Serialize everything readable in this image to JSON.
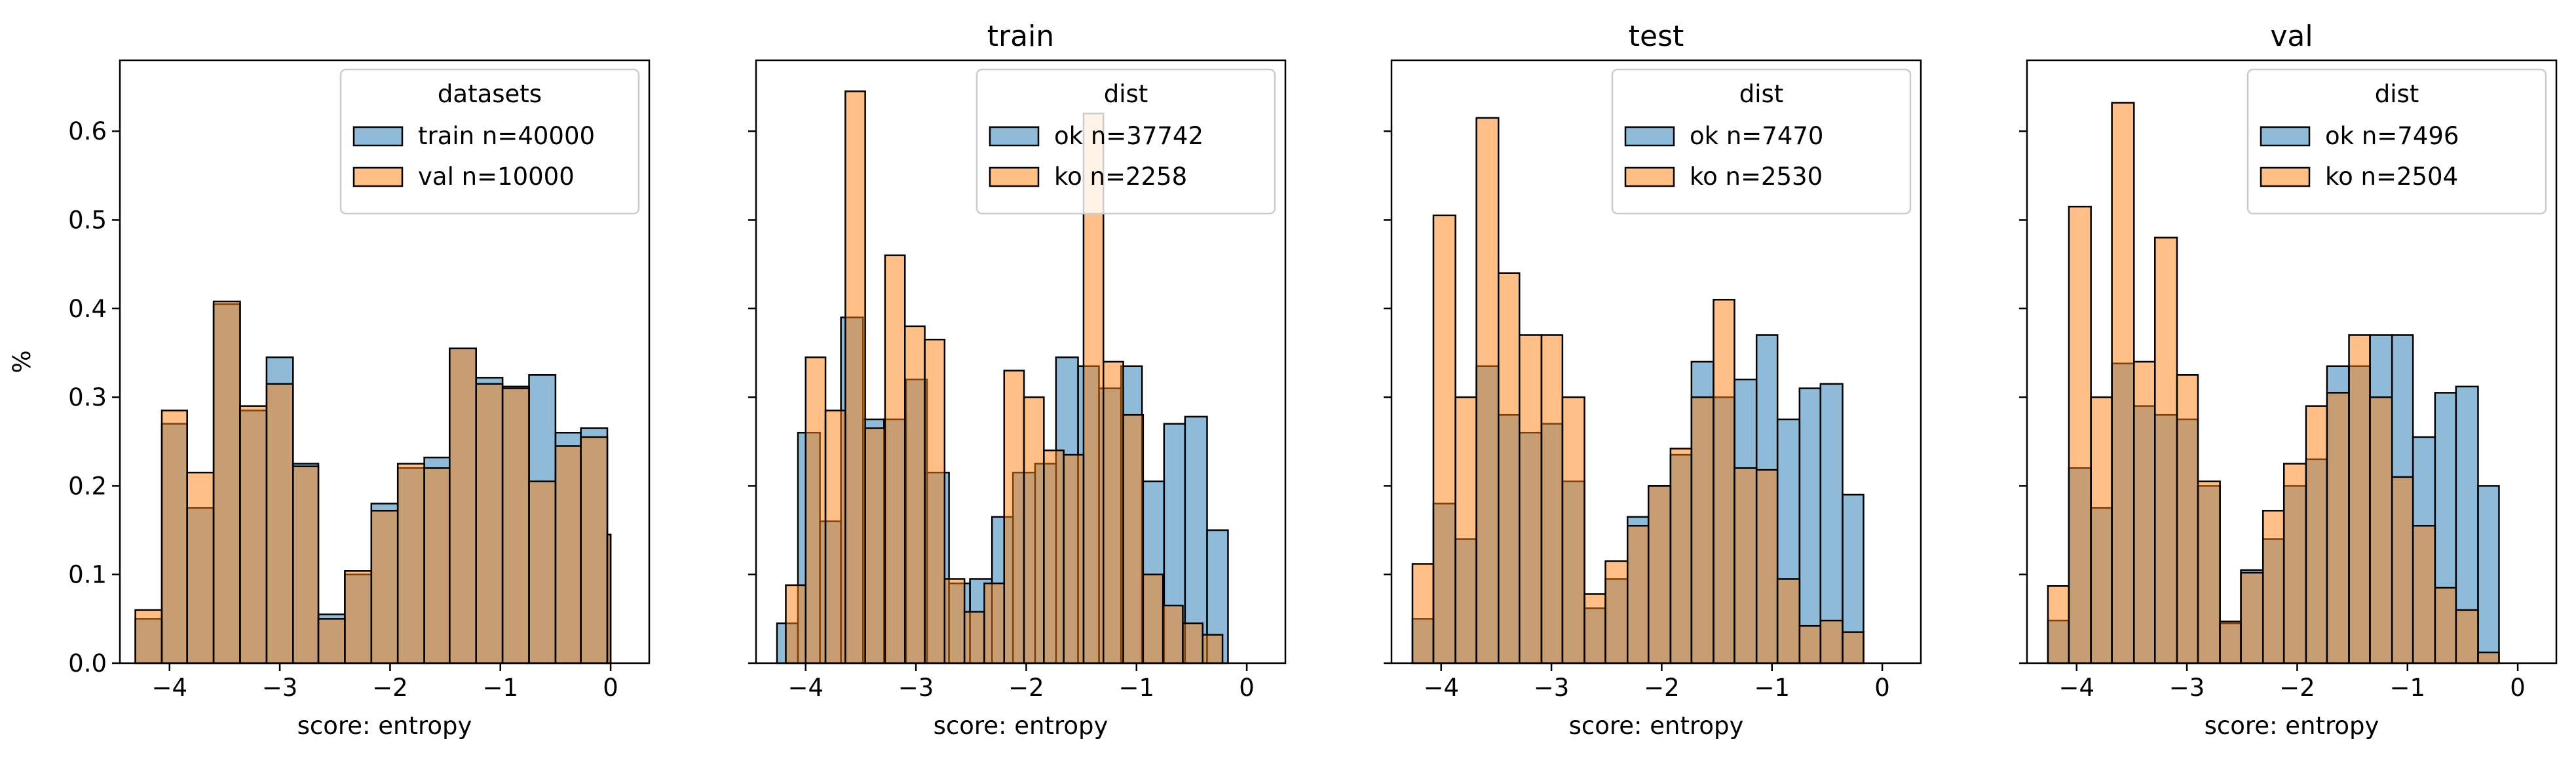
{
  "colors": {
    "series_a": "#1f77b4",
    "series_b": "#ff7f0e",
    "bar_alpha": 0.5,
    "edge": "#000000"
  },
  "chart_data": [
    {
      "type": "bar",
      "title": "",
      "xlabel": "score: entropy",
      "ylabel": "%",
      "xlim": [
        -4.45,
        0.35
      ],
      "ylim": [
        0,
        0.68
      ],
      "xticks": [
        -4,
        -3,
        -2,
        -1,
        0
      ],
      "yticks": [
        0.0,
        0.1,
        0.2,
        0.3,
        0.4,
        0.5,
        0.6
      ],
      "grid": false,
      "legend": {
        "title": "datasets",
        "placement": "top-right"
      },
      "series": [
        {
          "name": "train n=40000",
          "color": "series_a",
          "bins": [
            [
              -4.31,
              -4.07,
              0.05
            ],
            [
              -4.07,
              -3.84,
              0.27
            ],
            [
              -3.84,
              -3.6,
              0.175
            ],
            [
              -3.6,
              -3.36,
              0.405
            ],
            [
              -3.36,
              -3.12,
              0.285
            ],
            [
              -3.12,
              -2.88,
              0.345
            ],
            [
              -2.88,
              -2.65,
              0.225
            ],
            [
              -2.65,
              -2.41,
              0.055
            ],
            [
              -2.41,
              -2.17,
              0.1
            ],
            [
              -2.17,
              -1.93,
              0.18
            ],
            [
              -1.93,
              -1.69,
              0.22
            ],
            [
              -1.69,
              -1.46,
              0.232
            ],
            [
              -1.46,
              -1.22,
              0.355
            ],
            [
              -1.22,
              -0.98,
              0.322
            ],
            [
              -0.98,
              -0.74,
              0.312
            ],
            [
              -0.74,
              -0.5,
              0.325
            ],
            [
              -0.5,
              -0.27,
              0.26
            ],
            [
              -0.27,
              -0.03,
              0.265
            ],
            [
              -0.03,
              0.0,
              0.145
            ]
          ]
        },
        {
          "name": "val n=10000",
          "color": "series_b",
          "bins": [
            [
              -4.31,
              -4.07,
              0.06
            ],
            [
              -4.07,
              -3.84,
              0.285
            ],
            [
              -3.84,
              -3.6,
              0.215
            ],
            [
              -3.6,
              -3.36,
              0.408
            ],
            [
              -3.36,
              -3.12,
              0.29
            ],
            [
              -3.12,
              -2.88,
              0.315
            ],
            [
              -2.88,
              -2.65,
              0.222
            ],
            [
              -2.65,
              -2.41,
              0.05
            ],
            [
              -2.41,
              -2.17,
              0.104
            ],
            [
              -2.17,
              -1.93,
              0.172
            ],
            [
              -1.93,
              -1.69,
              0.225
            ],
            [
              -1.69,
              -1.46,
              0.22
            ],
            [
              -1.46,
              -1.22,
              0.355
            ],
            [
              -1.22,
              -0.98,
              0.315
            ],
            [
              -0.98,
              -0.74,
              0.31
            ],
            [
              -0.74,
              -0.5,
              0.205
            ],
            [
              -0.5,
              -0.27,
              0.245
            ],
            [
              -0.27,
              -0.03,
              0.255
            ],
            [
              -0.03,
              0.0,
              0.145
            ]
          ]
        }
      ]
    },
    {
      "type": "bar",
      "title": "train",
      "xlabel": "score: entropy",
      "ylabel": "",
      "xlim": [
        -4.45,
        0.35
      ],
      "ylim": [
        0,
        0.68
      ],
      "xticks": [
        -4,
        -3,
        -2,
        -1,
        0
      ],
      "yticks": [
        0.0,
        0.1,
        0.2,
        0.3,
        0.4,
        0.5,
        0.6
      ],
      "grid": false,
      "legend": {
        "title": "dist",
        "placement": "top-right"
      },
      "series": [
        {
          "name": "ok n=37742",
          "color": "series_a",
          "bins": [
            [
              -4.26,
              -4.07,
              0.045
            ],
            [
              -4.07,
              -3.87,
              0.26
            ],
            [
              -3.87,
              -3.68,
              0.16
            ],
            [
              -3.68,
              -3.48,
              0.39
            ],
            [
              -3.48,
              -3.29,
              0.275
            ],
            [
              -3.29,
              -3.09,
              0.275
            ],
            [
              -3.09,
              -2.9,
              0.32
            ],
            [
              -2.9,
              -2.7,
              0.215
            ],
            [
              -2.7,
              -2.51,
              0.09
            ],
            [
              -2.51,
              -2.31,
              0.095
            ],
            [
              -2.31,
              -2.12,
              0.165
            ],
            [
              -2.12,
              -1.92,
              0.215
            ],
            [
              -1.92,
              -1.73,
              0.225
            ],
            [
              -1.73,
              -1.53,
              0.345
            ],
            [
              -1.53,
              -1.34,
              0.335
            ],
            [
              -1.34,
              -1.14,
              0.31
            ],
            [
              -1.14,
              -0.95,
              0.335
            ],
            [
              -0.95,
              -0.75,
              0.205
            ],
            [
              -0.75,
              -0.56,
              0.27
            ],
            [
              -0.56,
              -0.36,
              0.278
            ],
            [
              -0.36,
              -0.17,
              0.15
            ]
          ]
        },
        {
          "name": "ko n=2258",
          "color": "series_b",
          "bins": [
            [
              -4.18,
              -4.0,
              0.088
            ],
            [
              -4.0,
              -3.82,
              0.345
            ],
            [
              -3.82,
              -3.64,
              0.285
            ],
            [
              -3.64,
              -3.46,
              0.645
            ],
            [
              -3.46,
              -3.28,
              0.265
            ],
            [
              -3.28,
              -3.1,
              0.46
            ],
            [
              -3.1,
              -2.92,
              0.38
            ],
            [
              -2.92,
              -2.74,
              0.365
            ],
            [
              -2.74,
              -2.56,
              0.095
            ],
            [
              -2.56,
              -2.38,
              0.058
            ],
            [
              -2.38,
              -2.2,
              0.09
            ],
            [
              -2.2,
              -2.02,
              0.33
            ],
            [
              -2.02,
              -1.84,
              0.3
            ],
            [
              -1.84,
              -1.66,
              0.24
            ],
            [
              -1.66,
              -1.48,
              0.235
            ],
            [
              -1.48,
              -1.3,
              0.62
            ],
            [
              -1.3,
              -1.12,
              0.34
            ],
            [
              -1.12,
              -0.94,
              0.28
            ],
            [
              -0.94,
              -0.76,
              0.1
            ],
            [
              -0.76,
              -0.58,
              0.065
            ],
            [
              -0.58,
              -0.4,
              0.045
            ],
            [
              -0.4,
              -0.22,
              0.032
            ]
          ]
        }
      ]
    },
    {
      "type": "bar",
      "title": "test",
      "xlabel": "score: entropy",
      "ylabel": "",
      "xlim": [
        -4.45,
        0.35
      ],
      "ylim": [
        0,
        0.68
      ],
      "xticks": [
        -4,
        -3,
        -2,
        -1,
        0
      ],
      "yticks": [
        0.0,
        0.1,
        0.2,
        0.3,
        0.4,
        0.5,
        0.6
      ],
      "grid": false,
      "legend": {
        "title": "dist",
        "placement": "top-right"
      },
      "series": [
        {
          "name": "ok n=7470",
          "color": "series_a",
          "bins": [
            [
              -4.26,
              -4.07,
              0.05
            ],
            [
              -4.07,
              -3.87,
              0.18
            ],
            [
              -3.87,
              -3.68,
              0.14
            ],
            [
              -3.68,
              -3.48,
              0.335
            ],
            [
              -3.48,
              -3.29,
              0.28
            ],
            [
              -3.29,
              -3.09,
              0.26
            ],
            [
              -3.09,
              -2.9,
              0.27
            ],
            [
              -2.9,
              -2.7,
              0.205
            ],
            [
              -2.7,
              -2.51,
              0.062
            ],
            [
              -2.51,
              -2.31,
              0.095
            ],
            [
              -2.31,
              -2.12,
              0.165
            ],
            [
              -2.12,
              -1.92,
              0.2
            ],
            [
              -1.92,
              -1.73,
              0.235
            ],
            [
              -1.73,
              -1.53,
              0.34
            ],
            [
              -1.53,
              -1.34,
              0.3
            ],
            [
              -1.34,
              -1.14,
              0.32
            ],
            [
              -1.14,
              -0.95,
              0.37
            ],
            [
              -0.95,
              -0.75,
              0.275
            ],
            [
              -0.75,
              -0.56,
              0.31
            ],
            [
              -0.56,
              -0.36,
              0.315
            ],
            [
              -0.36,
              -0.17,
              0.19
            ]
          ]
        },
        {
          "name": "ko n=2530",
          "color": "series_b",
          "bins": [
            [
              -4.26,
              -4.07,
              0.112
            ],
            [
              -4.07,
              -3.87,
              0.505
            ],
            [
              -3.87,
              -3.68,
              0.3
            ],
            [
              -3.68,
              -3.48,
              0.615
            ],
            [
              -3.48,
              -3.29,
              0.44
            ],
            [
              -3.29,
              -3.09,
              0.37
            ],
            [
              -3.09,
              -2.9,
              0.37
            ],
            [
              -2.9,
              -2.7,
              0.3
            ],
            [
              -2.7,
              -2.51,
              0.078
            ],
            [
              -2.51,
              -2.31,
              0.115
            ],
            [
              -2.31,
              -2.12,
              0.155
            ],
            [
              -2.12,
              -1.92,
              0.2
            ],
            [
              -1.92,
              -1.73,
              0.242
            ],
            [
              -1.73,
              -1.53,
              0.3
            ],
            [
              -1.53,
              -1.34,
              0.41
            ],
            [
              -1.34,
              -1.14,
              0.22
            ],
            [
              -1.14,
              -0.95,
              0.218
            ],
            [
              -0.95,
              -0.75,
              0.095
            ],
            [
              -0.75,
              -0.56,
              0.042
            ],
            [
              -0.56,
              -0.36,
              0.048
            ],
            [
              -0.36,
              -0.17,
              0.035
            ]
          ]
        }
      ]
    },
    {
      "type": "bar",
      "title": "val",
      "xlabel": "score: entropy",
      "ylabel": "",
      "xlim": [
        -4.45,
        0.35
      ],
      "ylim": [
        0,
        0.68
      ],
      "xticks": [
        -4,
        -3,
        -2,
        -1,
        0
      ],
      "yticks": [
        0.0,
        0.1,
        0.2,
        0.3,
        0.4,
        0.5,
        0.6
      ],
      "grid": false,
      "legend": {
        "title": "dist",
        "placement": "top-right"
      },
      "series": [
        {
          "name": "ok n=7496",
          "color": "series_a",
          "bins": [
            [
              -4.26,
              -4.07,
              0.048
            ],
            [
              -4.07,
              -3.87,
              0.22
            ],
            [
              -3.87,
              -3.68,
              0.175
            ],
            [
              -3.68,
              -3.48,
              0.338
            ],
            [
              -3.48,
              -3.29,
              0.29
            ],
            [
              -3.29,
              -3.09,
              0.28
            ],
            [
              -3.09,
              -2.9,
              0.275
            ],
            [
              -2.9,
              -2.7,
              0.2
            ],
            [
              -2.7,
              -2.51,
              0.045
            ],
            [
              -2.51,
              -2.31,
              0.105
            ],
            [
              -2.31,
              -2.12,
              0.14
            ],
            [
              -2.12,
              -1.92,
              0.2
            ],
            [
              -1.92,
              -1.73,
              0.23
            ],
            [
              -1.73,
              -1.53,
              0.335
            ],
            [
              -1.53,
              -1.34,
              0.335
            ],
            [
              -1.34,
              -1.14,
              0.37
            ],
            [
              -1.14,
              -0.95,
              0.37
            ],
            [
              -0.95,
              -0.75,
              0.255
            ],
            [
              -0.75,
              -0.56,
              0.305
            ],
            [
              -0.56,
              -0.36,
              0.312
            ],
            [
              -0.36,
              -0.17,
              0.2
            ]
          ]
        },
        {
          "name": "ko n=2504",
          "color": "series_b",
          "bins": [
            [
              -4.26,
              -4.07,
              0.087
            ],
            [
              -4.07,
              -3.87,
              0.515
            ],
            [
              -3.87,
              -3.68,
              0.3
            ],
            [
              -3.68,
              -3.48,
              0.632
            ],
            [
              -3.48,
              -3.29,
              0.34
            ],
            [
              -3.29,
              -3.09,
              0.48
            ],
            [
              -3.09,
              -2.9,
              0.325
            ],
            [
              -2.9,
              -2.7,
              0.205
            ],
            [
              -2.7,
              -2.51,
              0.047
            ],
            [
              -2.51,
              -2.31,
              0.102
            ],
            [
              -2.31,
              -2.12,
              0.172
            ],
            [
              -2.12,
              -1.92,
              0.225
            ],
            [
              -1.92,
              -1.73,
              0.29
            ],
            [
              -1.73,
              -1.53,
              0.305
            ],
            [
              -1.53,
              -1.34,
              0.37
            ],
            [
              -1.34,
              -1.14,
              0.3
            ],
            [
              -1.14,
              -0.95,
              0.21
            ],
            [
              -0.95,
              -0.75,
              0.155
            ],
            [
              -0.75,
              -0.56,
              0.085
            ],
            [
              -0.56,
              -0.36,
              0.06
            ],
            [
              -0.36,
              -0.17,
              0.012
            ]
          ]
        }
      ]
    }
  ]
}
